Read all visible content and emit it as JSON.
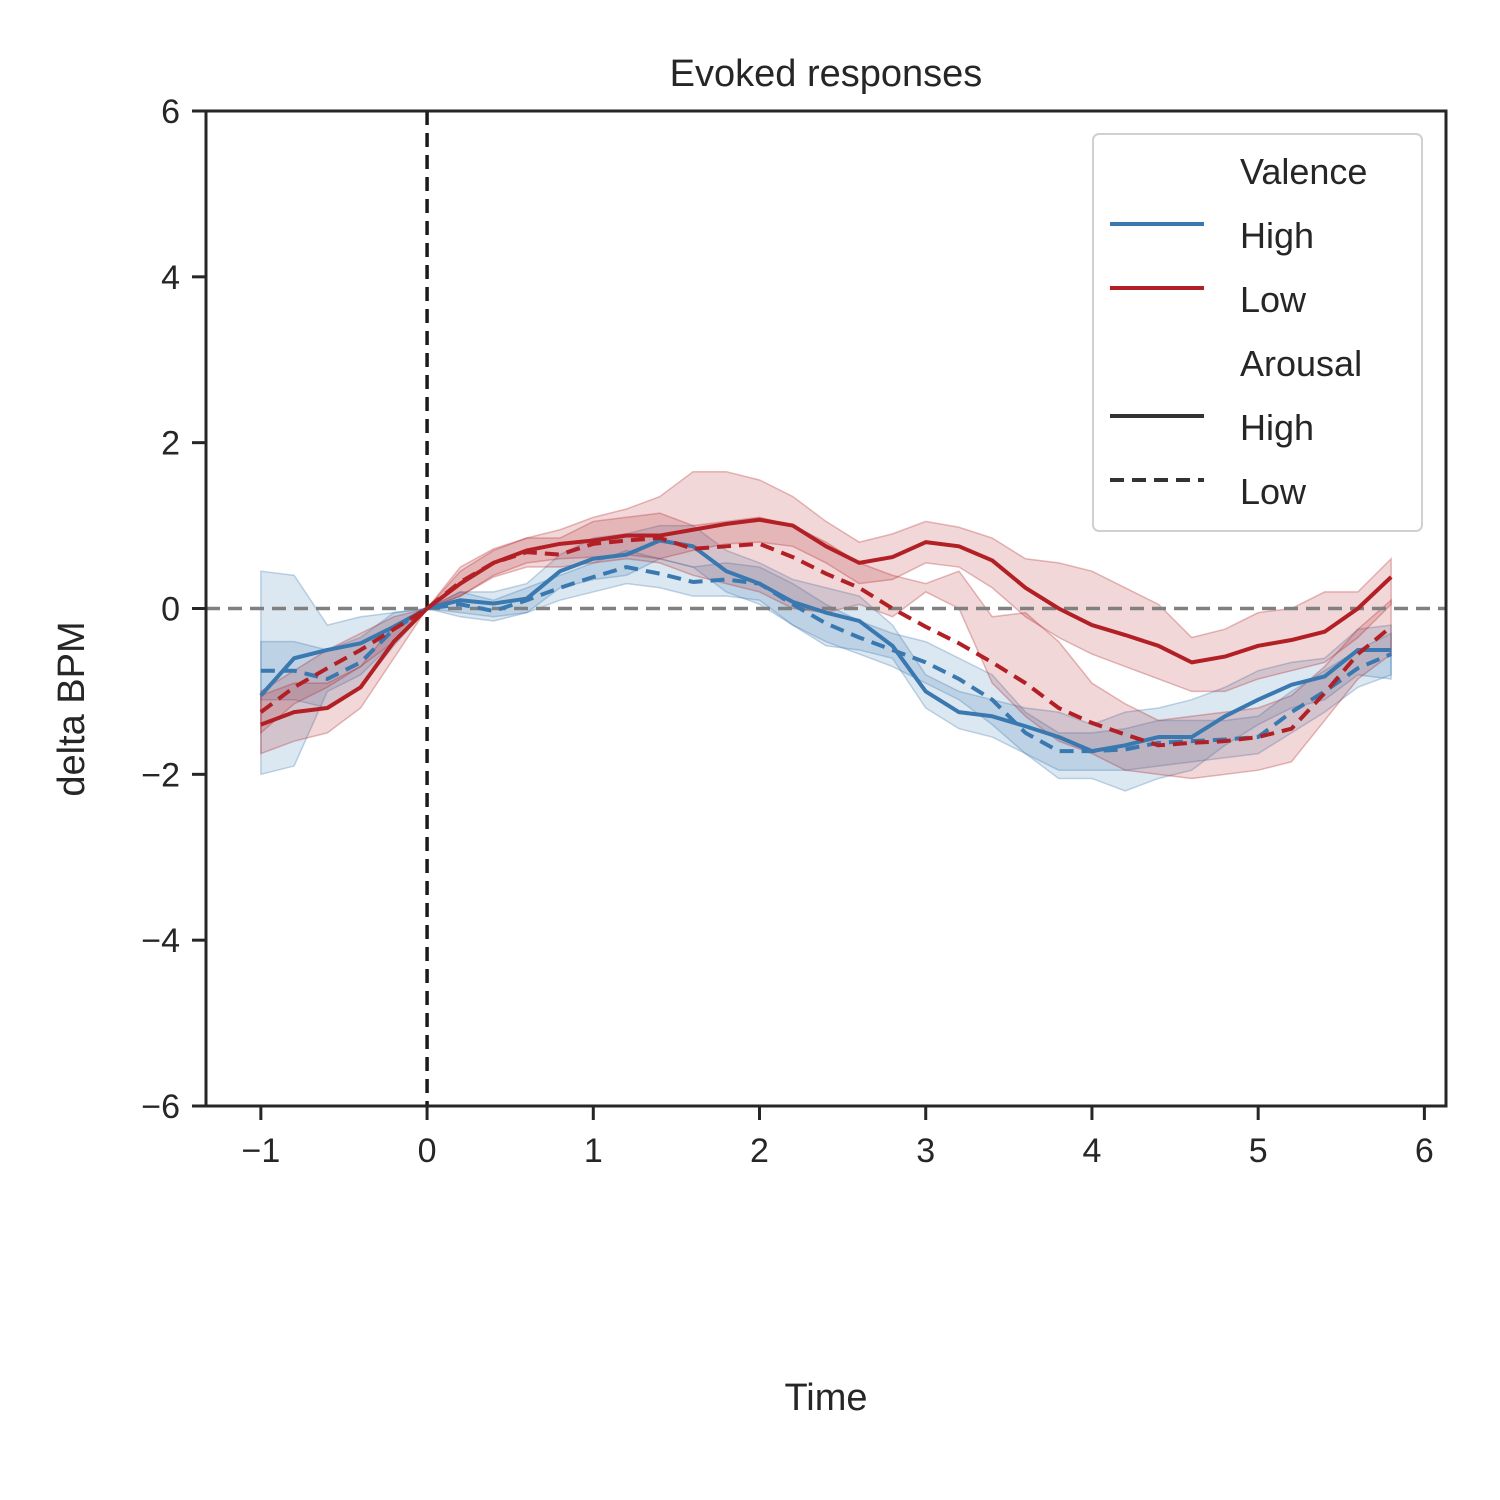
{
  "chart_data": {
    "type": "line",
    "title": "Evoked responses",
    "xlabel": "Time",
    "ylabel": "delta BPM",
    "xlim": [
      -1.33,
      6.13
    ],
    "ylim": [
      -6,
      6
    ],
    "xticks": [
      -1,
      0,
      1,
      2,
      3,
      4,
      5,
      6
    ],
    "xtick_labels": [
      "−1",
      "0",
      "1",
      "2",
      "3",
      "4",
      "5",
      "6"
    ],
    "yticks": [
      -6,
      -4,
      -2,
      0,
      2,
      4,
      6
    ],
    "ytick_labels": [
      "−6",
      "−4",
      "−2",
      "0",
      "2",
      "4",
      "6"
    ],
    "grid": false,
    "reference_lines": [
      {
        "orientation": "vertical",
        "value": 0,
        "style": "dashed",
        "color": "#1a1a1a"
      },
      {
        "orientation": "horizontal",
        "value": 0,
        "style": "dashed",
        "color": "#808080"
      }
    ],
    "colors": {
      "high_valence": "#3a78b0",
      "low_valence": "#b22025",
      "axis": "#262626"
    },
    "x": [
      -1.0,
      -0.8,
      -0.6,
      -0.4,
      -0.2,
      0.0,
      0.2,
      0.4,
      0.6,
      0.8,
      1.0,
      1.2,
      1.4,
      1.6,
      1.8,
      2.0,
      2.2,
      2.4,
      2.6,
      2.8,
      3.0,
      3.2,
      3.4,
      3.6,
      3.8,
      4.0,
      4.2,
      4.4,
      4.6,
      4.8,
      5.0,
      5.2,
      5.4,
      5.6,
      5.8
    ],
    "series": [
      {
        "valence": "High",
        "arousal": "High",
        "color": "#3a78b0",
        "dash": "solid",
        "values": [
          -1.05,
          -0.6,
          -0.5,
          -0.42,
          -0.22,
          0.0,
          0.1,
          0.06,
          0.12,
          0.45,
          0.6,
          0.65,
          0.82,
          0.75,
          0.45,
          0.3,
          0.08,
          -0.05,
          -0.15,
          -0.45,
          -1.0,
          -1.25,
          -1.3,
          -1.42,
          -1.55,
          -1.72,
          -1.65,
          -1.55,
          -1.55,
          -1.3,
          -1.1,
          -0.92,
          -0.82,
          -0.5,
          -0.5
        ],
        "ci_low": [
          -2.0,
          -1.9,
          -1.0,
          -0.8,
          -0.4,
          0.0,
          -0.05,
          -0.1,
          -0.05,
          0.25,
          0.35,
          0.4,
          0.6,
          0.5,
          0.2,
          0.05,
          -0.2,
          -0.45,
          -0.5,
          -0.6,
          -1.2,
          -1.45,
          -1.55,
          -1.75,
          -2.05,
          -2.05,
          -2.2,
          -2.05,
          -1.95,
          -1.65,
          -1.4,
          -1.2,
          -1.1,
          -0.8,
          -0.85
        ],
        "ci_high": [
          0.45,
          0.4,
          -0.2,
          -0.1,
          -0.05,
          0.0,
          0.2,
          0.2,
          0.3,
          0.65,
          0.85,
          0.9,
          1.0,
          1.0,
          0.7,
          0.55,
          0.35,
          0.25,
          0.15,
          -0.2,
          -0.8,
          -1.0,
          -1.1,
          -1.2,
          -1.25,
          -1.4,
          -1.25,
          -1.2,
          -1.1,
          -0.95,
          -0.75,
          -0.65,
          -0.6,
          -0.25,
          -0.2
        ]
      },
      {
        "valence": "High",
        "arousal": "Low",
        "color": "#3a78b0",
        "dash": "dashed",
        "values": [
          -0.75,
          -0.75,
          -0.85,
          -0.65,
          -0.25,
          0.0,
          0.05,
          -0.03,
          0.1,
          0.25,
          0.38,
          0.5,
          0.42,
          0.32,
          0.35,
          0.3,
          0.05,
          -0.18,
          -0.35,
          -0.5,
          -0.65,
          -0.85,
          -1.1,
          -1.5,
          -1.72,
          -1.72,
          -1.7,
          -1.62,
          -1.6,
          -1.58,
          -1.55,
          -1.25,
          -1.0,
          -0.72,
          -0.55
        ],
        "ci_low": [
          -1.1,
          -1.1,
          -1.2,
          -0.95,
          -0.45,
          0.0,
          -0.1,
          -0.15,
          -0.05,
          0.1,
          0.2,
          0.3,
          0.25,
          0.15,
          0.15,
          0.1,
          -0.2,
          -0.4,
          -0.55,
          -0.7,
          -0.9,
          -1.1,
          -1.4,
          -1.75,
          -1.95,
          -1.95,
          -1.95,
          -1.9,
          -1.85,
          -1.8,
          -1.75,
          -1.5,
          -1.25,
          -0.95,
          -0.8
        ],
        "ci_high": [
          -0.4,
          -0.4,
          -0.5,
          -0.35,
          -0.05,
          0.0,
          0.2,
          0.1,
          0.25,
          0.4,
          0.55,
          0.7,
          0.6,
          0.5,
          0.55,
          0.5,
          0.3,
          0.05,
          -0.15,
          -0.3,
          -0.4,
          -0.6,
          -0.8,
          -1.25,
          -1.5,
          -1.5,
          -1.45,
          -1.35,
          -1.35,
          -1.35,
          -1.3,
          -1.0,
          -0.75,
          -0.5,
          -0.3
        ]
      },
      {
        "valence": "Low",
        "arousal": "High",
        "color": "#b22025",
        "dash": "solid",
        "values": [
          -1.4,
          -1.25,
          -1.2,
          -0.95,
          -0.4,
          0.0,
          0.3,
          0.55,
          0.7,
          0.78,
          0.82,
          0.88,
          0.88,
          0.95,
          1.02,
          1.07,
          1.0,
          0.75,
          0.55,
          0.62,
          0.8,
          0.75,
          0.58,
          0.25,
          0.0,
          -0.2,
          -0.32,
          -0.45,
          -0.65,
          -0.58,
          -0.45,
          -0.38,
          -0.28,
          0.0,
          0.38
        ],
        "ci_low": [
          -1.75,
          -1.6,
          -1.5,
          -1.2,
          -0.6,
          0.0,
          0.15,
          0.4,
          0.55,
          0.6,
          0.62,
          0.65,
          0.6,
          0.7,
          0.78,
          0.8,
          0.75,
          0.55,
          0.3,
          0.35,
          0.55,
          0.5,
          0.25,
          -0.1,
          -0.35,
          -0.55,
          -0.7,
          -0.85,
          -1.0,
          -1.0,
          -0.85,
          -0.75,
          -0.65,
          -0.35,
          0.05
        ],
        "ci_high": [
          -1.05,
          -0.9,
          -0.9,
          -0.7,
          -0.2,
          0.0,
          0.45,
          0.7,
          0.85,
          0.95,
          1.1,
          1.2,
          1.35,
          1.65,
          1.65,
          1.55,
          1.35,
          1.05,
          0.8,
          0.9,
          1.05,
          0.98,
          0.85,
          0.6,
          0.55,
          0.45,
          0.25,
          0.05,
          -0.35,
          -0.25,
          -0.05,
          0.0,
          0.2,
          0.2,
          0.6
        ]
      },
      {
        "valence": "Low",
        "arousal": "Low",
        "color": "#b22025",
        "dash": "dashed",
        "values": [
          -1.25,
          -0.95,
          -0.72,
          -0.5,
          -0.25,
          0.0,
          0.32,
          0.55,
          0.68,
          0.65,
          0.78,
          0.82,
          0.85,
          0.72,
          0.75,
          0.78,
          0.62,
          0.42,
          0.25,
          0.0,
          -0.22,
          -0.42,
          -0.65,
          -0.9,
          -1.2,
          -1.38,
          -1.52,
          -1.65,
          -1.62,
          -1.6,
          -1.55,
          -1.45,
          -1.02,
          -0.55,
          -0.22
        ],
        "ci_low": [
          -1.5,
          -1.15,
          -0.95,
          -0.7,
          -0.4,
          0.0,
          0.15,
          0.38,
          0.5,
          0.5,
          0.55,
          0.6,
          0.55,
          0.4,
          0.3,
          0.2,
          0.0,
          -0.05,
          0.05,
          -0.1,
          0.2,
          0.0,
          -0.9,
          -1.3,
          -1.6,
          -1.75,
          -1.95,
          -2.0,
          -2.05,
          -2.0,
          -1.95,
          -1.85,
          -1.35,
          -0.85,
          -0.55
        ],
        "ci_high": [
          -1.0,
          -0.75,
          -0.5,
          -0.3,
          -0.1,
          0.0,
          0.5,
          0.72,
          0.85,
          0.85,
          1.05,
          1.1,
          1.15,
          1.0,
          1.05,
          1.1,
          1.0,
          0.8,
          0.55,
          0.4,
          0.3,
          0.45,
          -0.1,
          -0.05,
          -0.4,
          -0.9,
          -1.15,
          -1.35,
          -1.3,
          -1.25,
          -1.2,
          -1.05,
          -0.7,
          -0.25,
          0.1
        ]
      }
    ],
    "legend": {
      "placement": "top-right",
      "entries": [
        {
          "label": "Valence",
          "kind": "header"
        },
        {
          "label": "High",
          "kind": "color",
          "color": "#3a78b0",
          "dash": "solid"
        },
        {
          "label": "Low",
          "kind": "color",
          "color": "#b22025",
          "dash": "solid"
        },
        {
          "label": "Arousal",
          "kind": "header"
        },
        {
          "label": "High",
          "kind": "style",
          "color": "#333333",
          "dash": "solid"
        },
        {
          "label": "Low",
          "kind": "style",
          "color": "#333333",
          "dash": "dashed"
        }
      ]
    }
  }
}
